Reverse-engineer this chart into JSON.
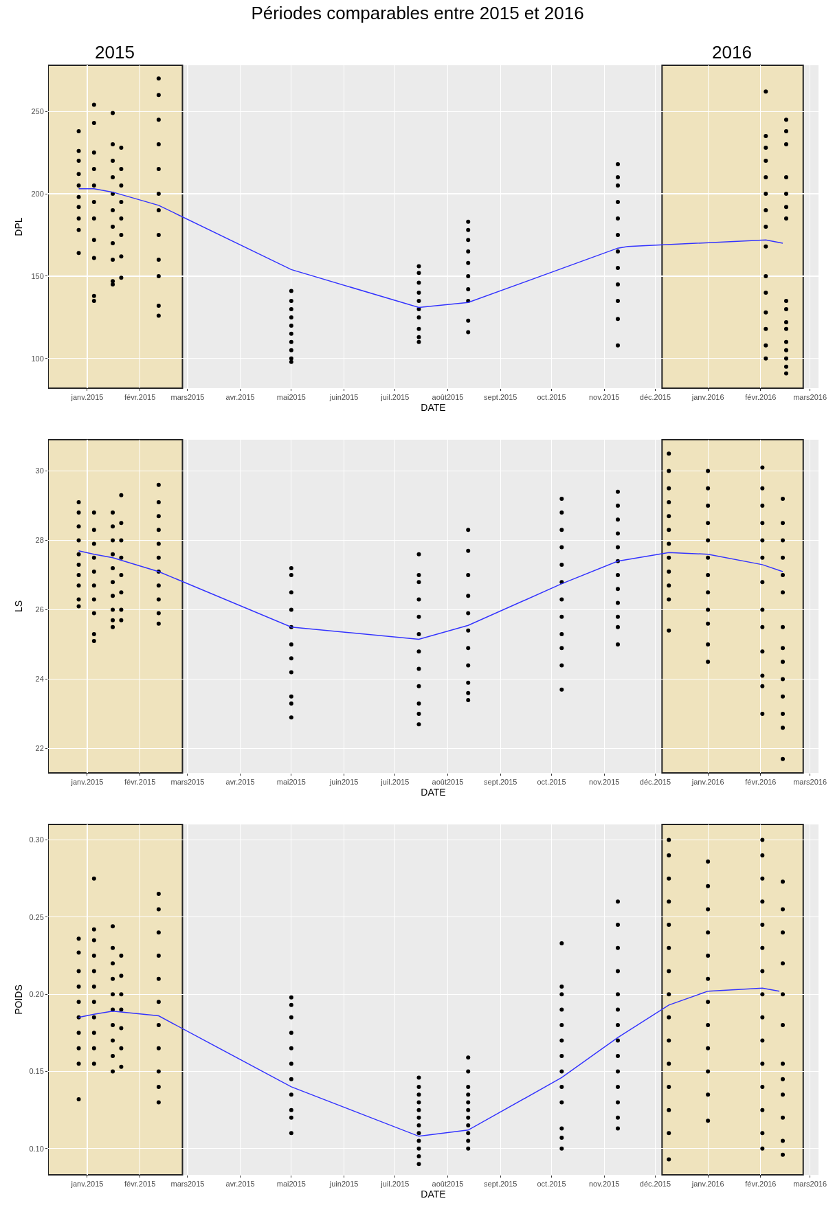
{
  "chart_data": [
    {
      "type": "scatter",
      "title": "Périodes comparables entre 2015 et 2016",
      "xlabel": "DATE",
      "ylabel": "DPL",
      "grid": true,
      "xlim": [
        "2014-12-09",
        "2016-03-06"
      ],
      "ylim": [
        82,
        278
      ],
      "xticks": [
        {
          "value": "2015-01-01",
          "label": "janv.2015"
        },
        {
          "value": "2015-02-01",
          "label": "févr.2015"
        },
        {
          "value": "2015-03-01",
          "label": "mars2015"
        },
        {
          "value": "2015-04-01",
          "label": "avr.2015"
        },
        {
          "value": "2015-05-01",
          "label": "mai2015"
        },
        {
          "value": "2015-06-01",
          "label": "juin2015"
        },
        {
          "value": "2015-07-01",
          "label": "juil.2015"
        },
        {
          "value": "2015-08-01",
          "label": "août2015"
        },
        {
          "value": "2015-09-01",
          "label": "sept.2015"
        },
        {
          "value": "2015-10-01",
          "label": "oct.2015"
        },
        {
          "value": "2015-11-01",
          "label": "nov.2015"
        },
        {
          "value": "2015-12-01",
          "label": "déc.2015"
        },
        {
          "value": "2016-01-01",
          "label": "janv.2016"
        },
        {
          "value": "2016-02-01",
          "label": "févr.2016"
        },
        {
          "value": "2016-03-01",
          "label": "mars2016"
        }
      ],
      "yticks": [
        100,
        150,
        200,
        250
      ],
      "bands": [
        {
          "axis": "x",
          "from": "2014-12-09",
          "to": "2015-02-26",
          "label": "2015",
          "color": "#f0e2b6"
        },
        {
          "axis": "x",
          "from": "2015-12-05",
          "to": "2016-02-26",
          "label": "2016",
          "color": "#f0e2b6"
        }
      ],
      "series": [
        {
          "type": "scatter",
          "marker": "circle",
          "color": "#000000",
          "x": [
            "2014-12-27",
            "2014-12-27",
            "2014-12-27",
            "2014-12-27",
            "2014-12-27",
            "2014-12-27",
            "2014-12-27",
            "2014-12-27",
            "2014-12-27",
            "2014-12-27"
          ],
          "values": [
            164,
            178,
            185,
            192,
            198,
            205,
            212,
            220,
            226,
            238
          ]
        },
        {
          "type": "scatter",
          "marker": "circle",
          "color": "#000000",
          "x": [
            "2015-01-05",
            "2015-01-05",
            "2015-01-05",
            "2015-01-05",
            "2015-01-05",
            "2015-01-05",
            "2015-01-05",
            "2015-01-05",
            "2015-01-05",
            "2015-01-05",
            "2015-01-05"
          ],
          "values": [
            135,
            138,
            161,
            172,
            185,
            195,
            205,
            215,
            225,
            243,
            254
          ]
        },
        {
          "type": "scatter",
          "marker": "circle",
          "color": "#000000",
          "x": [
            "2015-01-16",
            "2015-01-16",
            "2015-01-16",
            "2015-01-16",
            "2015-01-16",
            "2015-01-16",
            "2015-01-16",
            "2015-01-16",
            "2015-01-16",
            "2015-01-16",
            "2015-01-16"
          ],
          "values": [
            145,
            147,
            160,
            170,
            180,
            190,
            200,
            210,
            220,
            230,
            249
          ]
        },
        {
          "type": "scatter",
          "marker": "circle",
          "color": "#000000",
          "x": [
            "2015-01-21",
            "2015-01-21",
            "2015-01-21",
            "2015-01-21",
            "2015-01-21",
            "2015-01-21",
            "2015-01-21",
            "2015-01-21"
          ],
          "values": [
            149,
            162,
            175,
            185,
            195,
            205,
            215,
            228
          ]
        },
        {
          "type": "scatter",
          "marker": "circle",
          "color": "#000000",
          "x": [
            "2015-02-12",
            "2015-02-12",
            "2015-02-12",
            "2015-02-12",
            "2015-02-12",
            "2015-02-12",
            "2015-02-12",
            "2015-02-12",
            "2015-02-12",
            "2015-02-12",
            "2015-02-12",
            "2015-02-12"
          ],
          "values": [
            126,
            132,
            150,
            160,
            175,
            190,
            200,
            215,
            230,
            245,
            260,
            270
          ]
        },
        {
          "type": "scatter",
          "marker": "circle",
          "color": "#000000",
          "x": [
            "2015-05-01",
            "2015-05-01",
            "2015-05-01",
            "2015-05-01",
            "2015-05-01",
            "2015-05-01",
            "2015-05-01",
            "2015-05-01",
            "2015-05-01",
            "2015-05-01"
          ],
          "values": [
            98,
            100,
            105,
            110,
            115,
            120,
            125,
            130,
            135,
            141
          ]
        },
        {
          "type": "scatter",
          "marker": "circle",
          "color": "#000000",
          "x": [
            "2015-07-15",
            "2015-07-15",
            "2015-07-15",
            "2015-07-15",
            "2015-07-15",
            "2015-07-15",
            "2015-07-15",
            "2015-07-15",
            "2015-07-15",
            "2015-07-15"
          ],
          "values": [
            110,
            113,
            118,
            125,
            130,
            135,
            140,
            146,
            152,
            156
          ]
        },
        {
          "type": "scatter",
          "marker": "circle",
          "color": "#000000",
          "x": [
            "2015-08-13",
            "2015-08-13",
            "2015-08-13",
            "2015-08-13",
            "2015-08-13",
            "2015-08-13",
            "2015-08-13",
            "2015-08-13",
            "2015-08-13",
            "2015-08-13"
          ],
          "values": [
            116,
            123,
            135,
            142,
            150,
            158,
            165,
            172,
            178,
            183
          ]
        },
        {
          "type": "scatter",
          "marker": "circle",
          "color": "#000000",
          "x": [
            "2015-11-09",
            "2015-11-09",
            "2015-11-09",
            "2015-11-09",
            "2015-11-09",
            "2015-11-09",
            "2015-11-09",
            "2015-11-09",
            "2015-11-09",
            "2015-11-09",
            "2015-11-09",
            "2015-11-09"
          ],
          "values": [
            108,
            124,
            135,
            145,
            155,
            165,
            175,
            185,
            195,
            205,
            210,
            218
          ]
        },
        {
          "type": "scatter",
          "marker": "circle",
          "color": "#000000",
          "x": [
            "2016-02-04",
            "2016-02-04",
            "2016-02-04",
            "2016-02-04",
            "2016-02-04",
            "2016-02-04",
            "2016-02-04",
            "2016-02-04",
            "2016-02-04",
            "2016-02-04",
            "2016-02-04",
            "2016-02-04",
            "2016-02-04",
            "2016-02-04",
            "2016-02-04"
          ],
          "values": [
            100,
            108,
            118,
            128,
            140,
            150,
            168,
            180,
            190,
            200,
            210,
            220,
            228,
            235,
            262
          ]
        },
        {
          "type": "scatter",
          "marker": "circle",
          "color": "#000000",
          "x": [
            "2016-02-16",
            "2016-02-16",
            "2016-02-16",
            "2016-02-16",
            "2016-02-16",
            "2016-02-16",
            "2016-02-16",
            "2016-02-16",
            "2016-02-16",
            "2016-02-16",
            "2016-02-16",
            "2016-02-16",
            "2016-02-16",
            "2016-02-16",
            "2016-02-16",
            "2016-02-16"
          ],
          "values": [
            91,
            95,
            100,
            105,
            110,
            118,
            122,
            130,
            135,
            185,
            192,
            200,
            210,
            230,
            238,
            245
          ]
        },
        {
          "type": "line",
          "marker": "none",
          "color": "#3333ff",
          "x": [
            "2014-12-27",
            "2015-01-05",
            "2015-01-16",
            "2015-02-12",
            "2015-05-01",
            "2015-07-15",
            "2015-08-13",
            "2015-11-09",
            "2015-11-15",
            "2016-02-04",
            "2016-02-14"
          ],
          "values": [
            203,
            203,
            201,
            193,
            154,
            131,
            134,
            167,
            168,
            172,
            170
          ]
        }
      ]
    },
    {
      "type": "scatter",
      "xlabel": "DATE",
      "ylabel": "LS",
      "grid": true,
      "xlim": [
        "2014-12-09",
        "2016-03-06"
      ],
      "ylim": [
        21.3,
        30.9
      ],
      "xticks": [
        {
          "value": "2015-01-01",
          "label": "janv.2015"
        },
        {
          "value": "2015-02-01",
          "label": "févr.2015"
        },
        {
          "value": "2015-03-01",
          "label": "mars2015"
        },
        {
          "value": "2015-04-01",
          "label": "avr.2015"
        },
        {
          "value": "2015-05-01",
          "label": "mai2015"
        },
        {
          "value": "2015-06-01",
          "label": "juin2015"
        },
        {
          "value": "2015-07-01",
          "label": "juil.2015"
        },
        {
          "value": "2015-08-01",
          "label": "août2015"
        },
        {
          "value": "2015-09-01",
          "label": "sept.2015"
        },
        {
          "value": "2015-10-01",
          "label": "oct.2015"
        },
        {
          "value": "2015-11-01",
          "label": "nov.2015"
        },
        {
          "value": "2015-12-01",
          "label": "déc.2015"
        },
        {
          "value": "2016-01-01",
          "label": "janv.2016"
        },
        {
          "value": "2016-02-01",
          "label": "févr.2016"
        },
        {
          "value": "2016-03-01",
          "label": "mars2016"
        }
      ],
      "yticks": [
        22,
        24,
        26,
        28,
        30
      ],
      "bands": [
        {
          "axis": "x",
          "from": "2014-12-09",
          "to": "2015-02-26",
          "color": "#f0e2b6"
        },
        {
          "axis": "x",
          "from": "2015-12-05",
          "to": "2016-02-26",
          "color": "#f0e2b6"
        }
      ],
      "series": [
        {
          "type": "scatter",
          "marker": "circle",
          "color": "#000000",
          "x": [
            "2014-12-27",
            "2014-12-27",
            "2014-12-27",
            "2014-12-27",
            "2014-12-27",
            "2014-12-27",
            "2014-12-27",
            "2014-12-27",
            "2014-12-27",
            "2014-12-27"
          ],
          "values": [
            26.1,
            26.3,
            26.7,
            27.0,
            27.3,
            27.6,
            28.0,
            28.4,
            28.8,
            29.1
          ]
        },
        {
          "type": "scatter",
          "marker": "circle",
          "color": "#000000",
          "x": [
            "2015-01-05",
            "2015-01-05",
            "2015-01-05",
            "2015-01-05",
            "2015-01-05",
            "2015-01-05",
            "2015-01-05",
            "2015-01-05",
            "2015-01-05",
            "2015-01-05"
          ],
          "values": [
            25.1,
            25.3,
            25.9,
            26.3,
            26.7,
            27.1,
            27.5,
            27.9,
            28.3,
            28.8
          ]
        },
        {
          "type": "scatter",
          "marker": "circle",
          "color": "#000000",
          "x": [
            "2015-01-16",
            "2015-01-16",
            "2015-01-16",
            "2015-01-16",
            "2015-01-16",
            "2015-01-16",
            "2015-01-16",
            "2015-01-16",
            "2015-01-16",
            "2015-01-16"
          ],
          "values": [
            25.5,
            25.7,
            26.0,
            26.4,
            26.8,
            27.2,
            27.6,
            28.0,
            28.4,
            28.8
          ]
        },
        {
          "type": "scatter",
          "marker": "circle",
          "color": "#000000",
          "x": [
            "2015-01-21",
            "2015-01-21",
            "2015-01-21",
            "2015-01-21",
            "2015-01-21",
            "2015-01-21",
            "2015-01-21",
            "2015-01-21"
          ],
          "values": [
            25.7,
            26.0,
            26.5,
            27.0,
            27.5,
            28.0,
            28.5,
            29.3
          ]
        },
        {
          "type": "scatter",
          "marker": "circle",
          "color": "#000000",
          "x": [
            "2015-02-12",
            "2015-02-12",
            "2015-02-12",
            "2015-02-12",
            "2015-02-12",
            "2015-02-12",
            "2015-02-12",
            "2015-02-12",
            "2015-02-12",
            "2015-02-12",
            "2015-02-12"
          ],
          "values": [
            25.6,
            25.9,
            26.3,
            26.7,
            27.1,
            27.5,
            27.9,
            28.3,
            28.7,
            29.1,
            29.6
          ]
        },
        {
          "type": "scatter",
          "marker": "circle",
          "color": "#000000",
          "x": [
            "2015-05-01",
            "2015-05-01",
            "2015-05-01",
            "2015-05-01",
            "2015-05-01",
            "2015-05-01",
            "2015-05-01",
            "2015-05-01",
            "2015-05-01",
            "2015-05-01",
            "2015-05-01"
          ],
          "values": [
            22.9,
            23.3,
            23.5,
            24.2,
            24.6,
            25.0,
            25.5,
            26.0,
            26.5,
            27.0,
            27.2
          ]
        },
        {
          "type": "scatter",
          "marker": "circle",
          "color": "#000000",
          "x": [
            "2015-07-15",
            "2015-07-15",
            "2015-07-15",
            "2015-07-15",
            "2015-07-15",
            "2015-07-15",
            "2015-07-15",
            "2015-07-15",
            "2015-07-15",
            "2015-07-15",
            "2015-07-15",
            "2015-07-15"
          ],
          "values": [
            22.7,
            23.0,
            23.3,
            23.8,
            24.3,
            24.8,
            25.3,
            25.8,
            26.3,
            26.8,
            27.0,
            27.6
          ]
        },
        {
          "type": "scatter",
          "marker": "circle",
          "color": "#000000",
          "x": [
            "2015-08-13",
            "2015-08-13",
            "2015-08-13",
            "2015-08-13",
            "2015-08-13",
            "2015-08-13",
            "2015-08-13",
            "2015-08-13",
            "2015-08-13",
            "2015-08-13",
            "2015-08-13"
          ],
          "values": [
            23.4,
            23.6,
            23.9,
            24.4,
            24.9,
            25.4,
            25.9,
            26.4,
            27.0,
            27.7,
            28.3
          ]
        },
        {
          "type": "scatter",
          "marker": "circle",
          "color": "#000000",
          "x": [
            "2015-10-07",
            "2015-10-07",
            "2015-10-07",
            "2015-10-07",
            "2015-10-07",
            "2015-10-07",
            "2015-10-07",
            "2015-10-07",
            "2015-10-07",
            "2015-10-07",
            "2015-10-07",
            "2015-10-07"
          ],
          "values": [
            23.7,
            24.4,
            24.9,
            25.3,
            25.8,
            26.3,
            26.8,
            27.3,
            27.8,
            28.3,
            28.8,
            29.2
          ]
        },
        {
          "type": "scatter",
          "marker": "circle",
          "color": "#000000",
          "x": [
            "2015-11-09",
            "2015-11-09",
            "2015-11-09",
            "2015-11-09",
            "2015-11-09",
            "2015-11-09",
            "2015-11-09",
            "2015-11-09",
            "2015-11-09",
            "2015-11-09",
            "2015-11-09",
            "2015-11-09"
          ],
          "values": [
            25.0,
            25.5,
            25.8,
            26.2,
            26.6,
            27.0,
            27.4,
            27.8,
            28.2,
            28.6,
            29.0,
            29.4
          ]
        },
        {
          "type": "scatter",
          "marker": "circle",
          "color": "#000000",
          "x": [
            "2015-12-09",
            "2015-12-09",
            "2015-12-09",
            "2015-12-09",
            "2015-12-09",
            "2015-12-09",
            "2015-12-09",
            "2015-12-09",
            "2015-12-09",
            "2015-12-09",
            "2015-12-09",
            "2015-12-09"
          ],
          "values": [
            25.4,
            26.3,
            26.7,
            27.1,
            27.5,
            27.9,
            28.3,
            28.7,
            29.1,
            29.5,
            30.0,
            30.5
          ]
        },
        {
          "type": "scatter",
          "marker": "circle",
          "color": "#000000",
          "x": [
            "2016-01-01",
            "2016-01-01",
            "2016-01-01",
            "2016-01-01",
            "2016-01-01",
            "2016-01-01",
            "2016-01-01",
            "2016-01-01",
            "2016-01-01",
            "2016-01-01",
            "2016-01-01",
            "2016-01-01"
          ],
          "values": [
            24.5,
            25.0,
            25.6,
            26.0,
            26.5,
            27.0,
            27.5,
            28.0,
            28.5,
            29.0,
            29.5,
            30.0
          ]
        },
        {
          "type": "scatter",
          "marker": "circle",
          "color": "#000000",
          "x": [
            "2016-02-02",
            "2016-02-02",
            "2016-02-02",
            "2016-02-02",
            "2016-02-02",
            "2016-02-02",
            "2016-02-02",
            "2016-02-02",
            "2016-02-02",
            "2016-02-02",
            "2016-02-02",
            "2016-02-02",
            "2016-02-02"
          ],
          "values": [
            23.0,
            23.8,
            24.1,
            24.8,
            25.5,
            26.0,
            26.8,
            27.5,
            28.0,
            28.5,
            29.0,
            29.5,
            30.1
          ]
        },
        {
          "type": "scatter",
          "marker": "circle",
          "color": "#000000",
          "x": [
            "2016-02-14",
            "2016-02-14",
            "2016-02-14",
            "2016-02-14",
            "2016-02-14",
            "2016-02-14",
            "2016-02-14",
            "2016-02-14",
            "2016-02-14",
            "2016-02-14",
            "2016-02-14",
            "2016-02-14",
            "2016-02-14",
            "2016-02-14"
          ],
          "values": [
            21.7,
            22.6,
            23.0,
            23.5,
            24.0,
            24.5,
            24.9,
            25.5,
            26.5,
            27.0,
            27.5,
            28.0,
            28.5,
            29.2
          ]
        },
        {
          "type": "line",
          "marker": "none",
          "color": "#3333ff",
          "x": [
            "2014-12-27",
            "2015-01-05",
            "2015-01-16",
            "2015-02-12",
            "2015-05-01",
            "2015-07-15",
            "2015-08-13",
            "2015-10-07",
            "2015-11-09",
            "2015-12-09",
            "2016-01-01",
            "2016-02-02",
            "2016-02-14"
          ],
          "values": [
            27.7,
            27.6,
            27.5,
            27.1,
            25.5,
            25.15,
            25.55,
            26.75,
            27.4,
            27.65,
            27.6,
            27.3,
            27.1
          ]
        }
      ]
    },
    {
      "type": "scatter",
      "xlabel": "DATE",
      "ylabel": "POIDS",
      "grid": true,
      "xlim": [
        "2014-12-09",
        "2016-03-06"
      ],
      "ylim": [
        0.083,
        0.31
      ],
      "xticks": [
        {
          "value": "2015-01-01",
          "label": "janv.2015"
        },
        {
          "value": "2015-02-01",
          "label": "févr.2015"
        },
        {
          "value": "2015-03-01",
          "label": "mars2015"
        },
        {
          "value": "2015-04-01",
          "label": "avr.2015"
        },
        {
          "value": "2015-05-01",
          "label": "mai2015"
        },
        {
          "value": "2015-06-01",
          "label": "juin2015"
        },
        {
          "value": "2015-07-01",
          "label": "juil.2015"
        },
        {
          "value": "2015-08-01",
          "label": "août2015"
        },
        {
          "value": "2015-09-01",
          "label": "sept.2015"
        },
        {
          "value": "2015-10-01",
          "label": "oct.2015"
        },
        {
          "value": "2015-11-01",
          "label": "nov.2015"
        },
        {
          "value": "2015-12-01",
          "label": "déc.2015"
        },
        {
          "value": "2016-01-01",
          "label": "janv.2016"
        },
        {
          "value": "2016-02-01",
          "label": "févr.2016"
        },
        {
          "value": "2016-03-01",
          "label": "mars2016"
        }
      ],
      "yticks": [
        {
          "value": 0.1,
          "label": "0.10"
        },
        {
          "value": 0.15,
          "label": "0.15"
        },
        {
          "value": 0.2,
          "label": "0.20"
        },
        {
          "value": 0.25,
          "label": "0.25"
        },
        {
          "value": 0.3,
          "label": "0.30"
        }
      ],
      "bands": [
        {
          "axis": "x",
          "from": "2014-12-09",
          "to": "2015-02-26",
          "color": "#f0e2b6"
        },
        {
          "axis": "x",
          "from": "2015-12-05",
          "to": "2016-02-26",
          "color": "#f0e2b6"
        }
      ],
      "series": [
        {
          "type": "scatter",
          "marker": "circle",
          "color": "#000000",
          "x": [
            "2014-12-27",
            "2014-12-27",
            "2014-12-27",
            "2014-12-27",
            "2014-12-27",
            "2014-12-27",
            "2014-12-27",
            "2014-12-27",
            "2014-12-27",
            "2014-12-27"
          ],
          "values": [
            0.132,
            0.155,
            0.165,
            0.175,
            0.185,
            0.195,
            0.205,
            0.215,
            0.227,
            0.236
          ]
        },
        {
          "type": "scatter",
          "marker": "circle",
          "color": "#000000",
          "x": [
            "2015-01-05",
            "2015-01-05",
            "2015-01-05",
            "2015-01-05",
            "2015-01-05",
            "2015-01-05",
            "2015-01-05",
            "2015-01-05",
            "2015-01-05",
            "2015-01-05",
            "2015-01-05"
          ],
          "values": [
            0.155,
            0.165,
            0.175,
            0.185,
            0.195,
            0.205,
            0.215,
            0.225,
            0.235,
            0.242,
            0.275
          ]
        },
        {
          "type": "scatter",
          "marker": "circle",
          "color": "#000000",
          "x": [
            "2015-01-16",
            "2015-01-16",
            "2015-01-16",
            "2015-01-16",
            "2015-01-16",
            "2015-01-16",
            "2015-01-16",
            "2015-01-16",
            "2015-01-16",
            "2015-01-16"
          ],
          "values": [
            0.15,
            0.16,
            0.17,
            0.18,
            0.19,
            0.2,
            0.21,
            0.22,
            0.23,
            0.244
          ]
        },
        {
          "type": "scatter",
          "marker": "circle",
          "color": "#000000",
          "x": [
            "2015-01-21",
            "2015-01-21",
            "2015-01-21",
            "2015-01-21",
            "2015-01-21",
            "2015-01-21",
            "2015-01-21"
          ],
          "values": [
            0.153,
            0.165,
            0.178,
            0.19,
            0.2,
            0.212,
            0.225
          ]
        },
        {
          "type": "scatter",
          "marker": "circle",
          "color": "#000000",
          "x": [
            "2015-02-12",
            "2015-02-12",
            "2015-02-12",
            "2015-02-12",
            "2015-02-12",
            "2015-02-12",
            "2015-02-12",
            "2015-02-12",
            "2015-02-12",
            "2015-02-12",
            "2015-02-12"
          ],
          "values": [
            0.13,
            0.14,
            0.15,
            0.165,
            0.18,
            0.195,
            0.21,
            0.225,
            0.24,
            0.255,
            0.265
          ]
        },
        {
          "type": "scatter",
          "marker": "circle",
          "color": "#000000",
          "x": [
            "2015-05-01",
            "2015-05-01",
            "2015-05-01",
            "2015-05-01",
            "2015-05-01",
            "2015-05-01",
            "2015-05-01",
            "2015-05-01",
            "2015-05-01",
            "2015-05-01",
            "2015-05-01"
          ],
          "values": [
            0.11,
            0.12,
            0.125,
            0.135,
            0.145,
            0.155,
            0.165,
            0.175,
            0.185,
            0.193,
            0.198
          ]
        },
        {
          "type": "scatter",
          "marker": "circle",
          "color": "#000000",
          "x": [
            "2015-07-15",
            "2015-07-15",
            "2015-07-15",
            "2015-07-15",
            "2015-07-15",
            "2015-07-15",
            "2015-07-15",
            "2015-07-15",
            "2015-07-15",
            "2015-07-15",
            "2015-07-15",
            "2015-07-15"
          ],
          "values": [
            0.09,
            0.095,
            0.1,
            0.105,
            0.11,
            0.115,
            0.12,
            0.125,
            0.13,
            0.135,
            0.14,
            0.146
          ]
        },
        {
          "type": "scatter",
          "marker": "circle",
          "color": "#000000",
          "x": [
            "2015-08-13",
            "2015-08-13",
            "2015-08-13",
            "2015-08-13",
            "2015-08-13",
            "2015-08-13",
            "2015-08-13",
            "2015-08-13",
            "2015-08-13",
            "2015-08-13",
            "2015-08-13"
          ],
          "values": [
            0.1,
            0.105,
            0.11,
            0.115,
            0.12,
            0.125,
            0.13,
            0.135,
            0.14,
            0.15,
            0.159
          ]
        },
        {
          "type": "scatter",
          "marker": "circle",
          "color": "#000000",
          "x": [
            "2015-10-07",
            "2015-10-07",
            "2015-10-07",
            "2015-10-07",
            "2015-10-07",
            "2015-10-07",
            "2015-10-07",
            "2015-10-07",
            "2015-10-07",
            "2015-10-07",
            "2015-10-07",
            "2015-10-07",
            "2015-10-07"
          ],
          "values": [
            0.1,
            0.107,
            0.113,
            0.13,
            0.14,
            0.15,
            0.16,
            0.17,
            0.18,
            0.19,
            0.2,
            0.205,
            0.233
          ]
        },
        {
          "type": "scatter",
          "marker": "circle",
          "color": "#000000",
          "x": [
            "2015-11-09",
            "2015-11-09",
            "2015-11-09",
            "2015-11-09",
            "2015-11-09",
            "2015-11-09",
            "2015-11-09",
            "2015-11-09",
            "2015-11-09",
            "2015-11-09",
            "2015-11-09",
            "2015-11-09",
            "2015-11-09",
            "2015-11-09"
          ],
          "values": [
            0.113,
            0.12,
            0.13,
            0.14,
            0.15,
            0.16,
            0.17,
            0.18,
            0.19,
            0.2,
            0.215,
            0.23,
            0.245,
            0.26
          ]
        },
        {
          "type": "scatter",
          "marker": "circle",
          "color": "#000000",
          "x": [
            "2015-12-09",
            "2015-12-09",
            "2015-12-09",
            "2015-12-09",
            "2015-12-09",
            "2015-12-09",
            "2015-12-09",
            "2015-12-09",
            "2015-12-09",
            "2015-12-09",
            "2015-12-09",
            "2015-12-09",
            "2015-12-09",
            "2015-12-09",
            "2015-12-09"
          ],
          "values": [
            0.093,
            0.11,
            0.125,
            0.14,
            0.155,
            0.17,
            0.185,
            0.2,
            0.215,
            0.23,
            0.245,
            0.26,
            0.275,
            0.29,
            0.3
          ]
        },
        {
          "type": "scatter",
          "marker": "circle",
          "color": "#000000",
          "x": [
            "2016-01-01",
            "2016-01-01",
            "2016-01-01",
            "2016-01-01",
            "2016-01-01",
            "2016-01-01",
            "2016-01-01",
            "2016-01-01",
            "2016-01-01",
            "2016-01-01",
            "2016-01-01",
            "2016-01-01"
          ],
          "values": [
            0.118,
            0.135,
            0.15,
            0.165,
            0.18,
            0.195,
            0.21,
            0.225,
            0.24,
            0.255,
            0.27,
            0.286
          ]
        },
        {
          "type": "scatter",
          "marker": "circle",
          "color": "#000000",
          "x": [
            "2016-02-02",
            "2016-02-02",
            "2016-02-02",
            "2016-02-02",
            "2016-02-02",
            "2016-02-02",
            "2016-02-02",
            "2016-02-02",
            "2016-02-02",
            "2016-02-02",
            "2016-02-02",
            "2016-02-02",
            "2016-02-02",
            "2016-02-02",
            "2016-02-02"
          ],
          "values": [
            0.1,
            0.11,
            0.125,
            0.14,
            0.155,
            0.17,
            0.185,
            0.2,
            0.215,
            0.23,
            0.245,
            0.26,
            0.275,
            0.29,
            0.3
          ]
        },
        {
          "type": "scatter",
          "marker": "circle",
          "color": "#000000",
          "x": [
            "2016-02-14",
            "2016-02-14",
            "2016-02-14",
            "2016-02-14",
            "2016-02-14",
            "2016-02-14",
            "2016-02-14",
            "2016-02-14",
            "2016-02-14",
            "2016-02-14",
            "2016-02-14",
            "2016-02-14"
          ],
          "values": [
            0.096,
            0.105,
            0.12,
            0.135,
            0.145,
            0.155,
            0.18,
            0.2,
            0.22,
            0.24,
            0.255,
            0.273
          ]
        },
        {
          "type": "line",
          "marker": "none",
          "color": "#3333ff",
          "x": [
            "2014-12-27",
            "2015-01-05",
            "2015-01-16",
            "2015-02-12",
            "2015-05-01",
            "2015-07-15",
            "2015-08-13",
            "2015-10-07",
            "2015-11-09",
            "2015-12-09",
            "2016-01-01",
            "2016-02-02",
            "2016-02-12"
          ],
          "values": [
            0.185,
            0.187,
            0.189,
            0.186,
            0.14,
            0.108,
            0.112,
            0.146,
            0.172,
            0.193,
            0.202,
            0.204,
            0.202
          ]
        }
      ]
    }
  ]
}
